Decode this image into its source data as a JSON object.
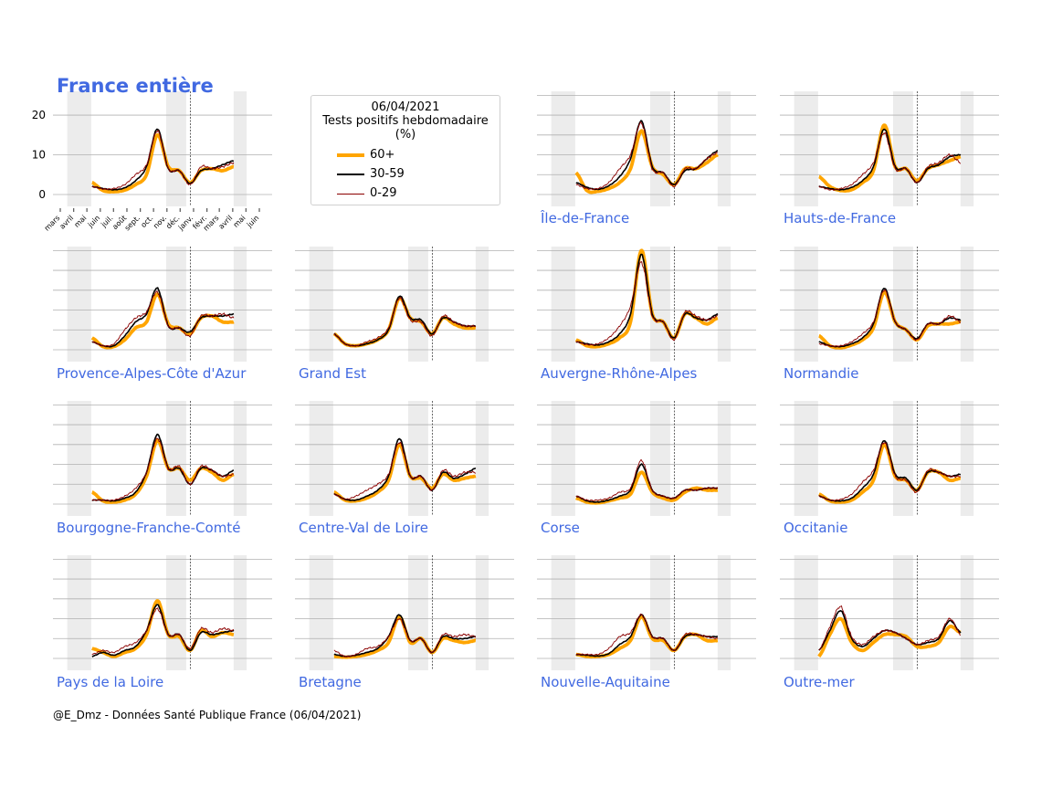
{
  "title": "France entière",
  "legend": {
    "date": "06/04/2021",
    "line1": "Tests positifs hebdomadaire",
    "line2": "(%)",
    "entries": [
      {
        "label": "60+",
        "color": "#FFA500"
      },
      {
        "label": "30-59",
        "color": "#000000"
      },
      {
        "label": "0-29",
        "color": "#8B0000"
      }
    ]
  },
  "footer": "@E_Dmz - Données Santé Publique France (06/04/2021)",
  "chart_data": {
    "type": "line",
    "yticks": [
      0,
      10,
      20
    ],
    "month_ticks": [
      "mars",
      "avril",
      "mai",
      "juin",
      "juil.",
      "août",
      "sept.",
      "oct.",
      "nov.",
      "déc.",
      "janv.",
      "févr.",
      "mars",
      "avril",
      "mai",
      "juin"
    ],
    "x_range": [
      "2020-03-01",
      "2021-06-01"
    ],
    "series_start": "2020-05-13",
    "series_end": "2021-04-03",
    "shaded_periods": [
      [
        "2020-03-17",
        "2020-05-11"
      ],
      [
        "2020-10-30",
        "2020-12-15"
      ],
      [
        "2021-04-03",
        "2021-05-03"
      ]
    ],
    "reference_line": "2020-12-25",
    "series_names": [
      "60+",
      "30-59",
      "0-29"
    ],
    "panels": [
      {
        "name": "France entière",
        "ylim": [
          -3,
          26
        ],
        "series": [
          {
            "name": "60+",
            "values": [
              3.0,
              1.0,
              0.7,
              1.1,
              2.5,
              5.0,
              15.0,
              7.0,
              6.0,
              3.0,
              6.0,
              6.5,
              6.0,
              7.0
            ]
          },
          {
            "name": "30-59",
            "values": [
              2.0,
              1.5,
              1.2,
              1.7,
              3.5,
              7.0,
              16.5,
              6.5,
              6.0,
              2.8,
              6.0,
              6.5,
              7.5,
              8.5
            ]
          },
          {
            "name": "0-29",
            "values": [
              2.0,
              1.4,
              1.5,
              2.5,
              5.0,
              7.5,
              16.0,
              6.5,
              6.0,
              2.5,
              7.0,
              6.5,
              7.0,
              8.0
            ]
          }
        ]
      },
      {
        "name": "Île-de-France",
        "ylim": [
          -3,
          26
        ],
        "series": [
          {
            "name": "60+",
            "values": [
              5.5,
              1.0,
              0.8,
              1.5,
              3.0,
              6.5,
              16.0,
              7.0,
              5.0,
              2.5,
              6.5,
              6.5,
              8.0,
              10.0
            ]
          },
          {
            "name": "30-59",
            "values": [
              3.0,
              1.8,
              1.3,
              2.2,
              4.5,
              9.0,
              18.5,
              7.0,
              5.5,
              2.5,
              6.0,
              6.5,
              9.0,
              11.0
            ]
          },
          {
            "name": "0-29",
            "values": [
              2.5,
              1.5,
              1.5,
              3.0,
              6.5,
              10.0,
              18.0,
              6.5,
              5.5,
              2.0,
              6.5,
              6.5,
              9.0,
              10.5
            ]
          }
        ]
      },
      {
        "name": "Hauts-de-France",
        "ylim": [
          -3,
          26
        ],
        "series": [
          {
            "name": "60+",
            "values": [
              4.5,
              2.0,
              1.0,
              1.2,
              3.0,
              6.0,
              17.5,
              7.0,
              6.5,
              3.5,
              6.5,
              7.5,
              8.5,
              9.5
            ]
          },
          {
            "name": "30-59",
            "values": [
              2.0,
              1.5,
              1.2,
              1.8,
              3.5,
              7.0,
              16.5,
              7.0,
              6.5,
              3.0,
              6.5,
              7.5,
              9.5,
              10.0
            ]
          },
          {
            "name": "0-29",
            "values": [
              2.0,
              1.2,
              1.5,
              2.5,
              5.0,
              8.0,
              15.5,
              6.5,
              6.5,
              3.0,
              7.0,
              8.0,
              10.0,
              8.0
            ]
          }
        ]
      },
      {
        "name": "Provence-Alpes-Côte d'Azur",
        "ylim": [
          -3,
          26
        ],
        "series": [
          {
            "name": "60+",
            "values": [
              3.0,
              0.8,
              0.8,
              2.5,
              5.5,
              7.0,
              14.0,
              6.5,
              5.5,
              4.0,
              8.0,
              8.5,
              7.0,
              7.0
            ]
          },
          {
            "name": "30-59",
            "values": [
              2.0,
              1.0,
              1.0,
              3.5,
              7.0,
              9.0,
              15.5,
              6.0,
              5.5,
              4.5,
              8.0,
              8.5,
              8.5,
              9.0
            ]
          },
          {
            "name": "0-29",
            "values": [
              2.0,
              1.0,
              1.5,
              5.0,
              8.0,
              9.5,
              14.5,
              6.0,
              5.5,
              3.5,
              8.5,
              8.5,
              9.0,
              8.0
            ]
          }
        ]
      },
      {
        "name": "Grand Est",
        "ylim": [
          -3,
          26
        ],
        "series": [
          {
            "name": "60+",
            "values": [
              4.0,
              1.5,
              1.0,
              1.5,
              2.5,
              5.0,
              13.0,
              8.0,
              7.0,
              4.0,
              8.0,
              6.5,
              5.5,
              5.5
            ]
          },
          {
            "name": "30-59",
            "values": [
              4.0,
              1.5,
              1.0,
              1.5,
              2.5,
              5.0,
              13.5,
              8.0,
              7.5,
              4.0,
              8.0,
              7.0,
              6.0,
              6.0
            ]
          },
          {
            "name": "0-29",
            "values": [
              4.0,
              1.5,
              1.0,
              2.0,
              3.0,
              5.5,
              13.0,
              7.5,
              7.0,
              3.5,
              8.5,
              7.0,
              6.0,
              6.0
            ]
          }
        ]
      },
      {
        "name": "Auvergne-Rhône-Alpes",
        "ylim": [
          -3,
          26
        ],
        "series": [
          {
            "name": "60+",
            "values": [
              2.5,
              1.0,
              0.8,
              1.5,
              3.0,
              7.0,
              25.0,
              9.0,
              7.0,
              3.0,
              9.0,
              8.0,
              6.5,
              8.0
            ]
          },
          {
            "name": "30-59",
            "values": [
              2.0,
              1.5,
              1.2,
              2.0,
              4.0,
              9.0,
              24.0,
              9.0,
              7.0,
              3.0,
              9.0,
              8.0,
              7.5,
              9.0
            ]
          },
          {
            "name": "0-29",
            "values": [
              2.0,
              1.3,
              1.5,
              3.0,
              6.0,
              11.0,
              22.0,
              8.5,
              7.0,
              2.5,
              9.5,
              8.5,
              7.5,
              8.5
            ]
          }
        ]
      },
      {
        "name": "Normandie",
        "ylim": [
          -3,
          26
        ],
        "series": [
          {
            "name": "60+",
            "values": [
              3.5,
              1.0,
              0.5,
              1.2,
              2.5,
              5.5,
              14.5,
              7.0,
              5.0,
              2.5,
              6.0,
              6.5,
              6.5,
              7.0
            ]
          },
          {
            "name": "30-59",
            "values": [
              2.0,
              1.0,
              0.8,
              1.5,
              3.0,
              6.5,
              15.5,
              7.0,
              5.0,
              2.8,
              6.5,
              6.5,
              8.0,
              7.5
            ]
          },
          {
            "name": "0-29",
            "values": [
              1.5,
              1.0,
              1.0,
              2.0,
              4.0,
              7.0,
              15.0,
              7.0,
              5.0,
              2.5,
              6.5,
              6.5,
              8.5,
              7.0
            ]
          }
        ]
      },
      {
        "name": "Bourgogne-Franche-Comté",
        "ylim": [
          -3,
          26
        ],
        "series": [
          {
            "name": "60+",
            "values": [
              3.0,
              0.8,
              0.5,
              1.0,
              2.5,
              7.0,
              16.0,
              9.0,
              9.0,
              6.0,
              9.0,
              8.0,
              6.0,
              7.5
            ]
          },
          {
            "name": "30-59",
            "values": [
              1.0,
              1.0,
              0.8,
              1.5,
              3.0,
              8.0,
              17.5,
              9.0,
              9.0,
              5.0,
              9.0,
              8.5,
              7.0,
              8.5
            ]
          },
          {
            "name": "0-29",
            "values": [
              1.0,
              1.0,
              1.0,
              2.0,
              4.0,
              8.0,
              16.5,
              9.0,
              9.5,
              5.0,
              9.5,
              8.5,
              7.0,
              7.5
            ]
          }
        ]
      },
      {
        "name": "Centre-Val de Loire",
        "ylim": [
          -3,
          26
        ],
        "series": [
          {
            "name": "60+",
            "values": [
              3.0,
              1.0,
              0.8,
              1.5,
              3.0,
              6.0,
              15.0,
              7.0,
              6.5,
              4.0,
              7.5,
              6.0,
              6.5,
              7.0
            ]
          },
          {
            "name": "30-59",
            "values": [
              2.5,
              1.2,
              1.0,
              2.0,
              3.5,
              7.0,
              16.5,
              7.0,
              7.0,
              3.5,
              8.0,
              6.5,
              7.5,
              9.0
            ]
          },
          {
            "name": "0-29",
            "values": [
              2.5,
              1.2,
              2.0,
              3.5,
              5.0,
              7.5,
              15.5,
              7.0,
              7.0,
              3.5,
              8.5,
              7.0,
              8.0,
              8.0
            ]
          }
        ]
      },
      {
        "name": "Corse",
        "ylim": [
          -3,
          26
        ],
        "series": [
          {
            "name": "60+",
            "values": [
              1.5,
              0.5,
              0.3,
              0.8,
              1.5,
              2.5,
              8.0,
              3.0,
              1.5,
              1.0,
              3.0,
              4.0,
              3.5,
              3.5
            ]
          },
          {
            "name": "30-59",
            "values": [
              2.0,
              0.8,
              0.5,
              1.0,
              2.0,
              3.5,
              10.0,
              3.5,
              2.0,
              1.5,
              3.5,
              3.5,
              4.0,
              4.0
            ]
          },
          {
            "name": "0-29",
            "values": [
              2.0,
              1.0,
              1.0,
              1.5,
              3.0,
              4.0,
              11.0,
              3.5,
              2.0,
              1.5,
              3.5,
              3.5,
              4.0,
              4.0
            ]
          }
        ]
      },
      {
        "name": "Occitanie",
        "ylim": [
          -3,
          26
        ],
        "series": [
          {
            "name": "60+",
            "values": [
              2.5,
              0.8,
              0.5,
              1.0,
              3.0,
              6.0,
              15.0,
              7.0,
              6.0,
              3.5,
              8.0,
              8.0,
              6.0,
              6.5
            ]
          },
          {
            "name": "30-59",
            "values": [
              2.0,
              1.0,
              0.8,
              1.5,
              4.0,
              7.5,
              16.0,
              7.5,
              6.5,
              3.5,
              8.0,
              8.0,
              7.0,
              7.5
            ]
          },
          {
            "name": "0-29",
            "values": [
              2.0,
              1.0,
              1.2,
              2.5,
              5.5,
              8.5,
              15.5,
              7.0,
              6.0,
              3.0,
              8.5,
              8.0,
              7.0,
              7.0
            ]
          }
        ]
      },
      {
        "name": "Pays de la Loire",
        "ylim": [
          -3,
          26
        ],
        "series": [
          {
            "name": "60+",
            "values": [
              2.5,
              1.5,
              0.5,
              1.5,
              2.5,
              6.0,
              14.5,
              6.0,
              5.5,
              2.0,
              7.0,
              5.5,
              6.5,
              6.0
            ]
          },
          {
            "name": "30-59",
            "values": [
              0.5,
              1.5,
              0.8,
              2.0,
              3.0,
              7.0,
              13.5,
              6.0,
              6.0,
              2.0,
              6.5,
              6.0,
              6.5,
              7.0
            ]
          },
          {
            "name": "0-29",
            "values": [
              1.0,
              2.0,
              1.5,
              3.0,
              4.0,
              7.0,
              12.5,
              6.0,
              6.0,
              2.5,
              7.5,
              6.5,
              7.5,
              7.0
            ]
          }
        ]
      },
      {
        "name": "Bretagne",
        "ylim": [
          -3,
          26
        ],
        "series": [
          {
            "name": "60+",
            "values": [
              0.5,
              0.3,
              0.5,
              1.0,
              2.0,
              4.0,
              10.5,
              4.0,
              5.0,
              1.5,
              5.0,
              4.5,
              4.0,
              4.5
            ]
          },
          {
            "name": "30-59",
            "values": [
              1.0,
              0.5,
              0.8,
              1.5,
              2.5,
              5.5,
              11.0,
              4.5,
              5.0,
              1.5,
              5.5,
              5.0,
              5.0,
              5.5
            ]
          },
          {
            "name": "0-29",
            "values": [
              2.0,
              0.5,
              1.0,
              2.5,
              3.0,
              5.5,
              10.0,
              4.5,
              5.0,
              1.5,
              6.0,
              5.5,
              6.0,
              5.5
            ]
          }
        ]
      },
      {
        "name": "Nouvelle-Aquitaine",
        "ylim": [
          -3,
          26
        ],
        "series": [
          {
            "name": "60+",
            "values": [
              1.0,
              0.5,
              0.5,
              1.0,
              2.5,
              4.5,
              10.5,
              5.0,
              4.5,
              2.0,
              5.5,
              6.0,
              4.5,
              4.5
            ]
          },
          {
            "name": "30-59",
            "values": [
              1.0,
              0.8,
              0.6,
              1.2,
              3.5,
              5.5,
              11.0,
              5.5,
              5.0,
              2.0,
              5.5,
              6.0,
              5.5,
              5.5
            ]
          },
          {
            "name": "0-29",
            "values": [
              1.0,
              1.0,
              1.0,
              2.5,
              5.5,
              6.5,
              11.0,
              5.5,
              5.0,
              2.0,
              6.0,
              6.0,
              5.5,
              5.0
            ]
          }
        ]
      },
      {
        "name": "Outre-mer",
        "ylim": [
          -3,
          26
        ],
        "series": [
          {
            "name": "60+",
            "values": [
              0.5,
              6.0,
              10.0,
              4.0,
              2.0,
              4.0,
              6.0,
              6.0,
              5.5,
              3.0,
              3.0,
              4.0,
              8.0,
              6.5
            ]
          },
          {
            "name": "30-59",
            "values": [
              2.0,
              7.0,
              12.0,
              5.0,
              3.0,
              5.0,
              7.0,
              6.5,
              5.0,
              3.5,
              4.0,
              5.0,
              9.5,
              6.5
            ]
          },
          {
            "name": "0-29",
            "values": [
              2.0,
              8.0,
              13.0,
              5.5,
              3.5,
              5.5,
              7.0,
              6.5,
              5.0,
              3.5,
              4.5,
              5.5,
              10.0,
              6.0
            ]
          }
        ]
      }
    ]
  }
}
